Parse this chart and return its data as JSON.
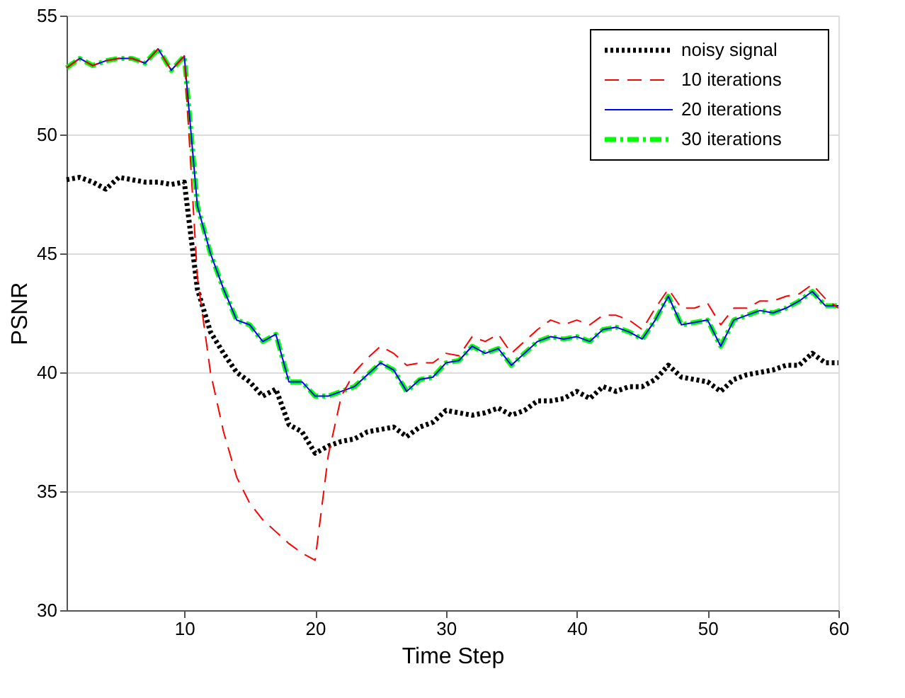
{
  "chart_data": {
    "type": "line",
    "xlabel": "Time Step",
    "ylabel": "PSNR",
    "x": [
      1,
      2,
      3,
      4,
      5,
      6,
      7,
      8,
      9,
      10,
      11,
      12,
      13,
      14,
      15,
      16,
      17,
      18,
      19,
      20,
      21,
      22,
      23,
      24,
      25,
      26,
      27,
      28,
      29,
      30,
      31,
      32,
      33,
      34,
      35,
      36,
      37,
      38,
      39,
      40,
      41,
      42,
      43,
      44,
      45,
      46,
      47,
      48,
      49,
      50,
      51,
      52,
      53,
      54,
      55,
      56,
      57,
      58,
      59,
      60
    ],
    "xlim": [
      1,
      60
    ],
    "xticks": [
      10,
      20,
      30,
      40,
      50,
      60
    ],
    "ylim": [
      30,
      55
    ],
    "yticks": [
      30,
      35,
      40,
      45,
      50,
      55
    ],
    "grid": "y",
    "legend": "top right",
    "marker": "none",
    "series": [
      {
        "name": "noisy signal",
        "color": "#000000",
        "line_style": "dotted",
        "values": [
          48.1,
          48.2,
          48.0,
          47.7,
          48.2,
          48.1,
          48.0,
          48.0,
          47.9,
          48.0,
          43.5,
          41.7,
          40.8,
          40.0,
          39.6,
          39.0,
          39.3,
          37.8,
          37.5,
          36.6,
          36.9,
          37.1,
          37.2,
          37.5,
          37.6,
          37.7,
          37.3,
          37.7,
          37.9,
          38.4,
          38.3,
          38.2,
          38.3,
          38.5,
          38.2,
          38.4,
          38.8,
          38.8,
          38.9,
          39.2,
          38.9,
          39.4,
          39.2,
          39.4,
          39.4,
          39.7,
          40.3,
          39.8,
          39.7,
          39.6,
          39.2,
          39.7,
          39.9,
          40.0,
          40.1,
          40.3,
          40.3,
          40.8,
          40.4,
          40.4
        ]
      },
      {
        "name": "10  iterations",
        "color": "#ff0000",
        "line_style": "dashed",
        "values": [
          52.8,
          53.2,
          52.9,
          53.1,
          53.2,
          53.2,
          53.0,
          53.6,
          52.7,
          53.3,
          44.0,
          40.0,
          37.5,
          35.6,
          34.5,
          33.8,
          33.3,
          32.8,
          32.4,
          32.1,
          36.5,
          39.0,
          40.0,
          40.6,
          41.1,
          40.8,
          40.3,
          40.4,
          40.4,
          40.8,
          40.7,
          41.5,
          41.3,
          41.6,
          40.8,
          41.3,
          41.8,
          42.2,
          42.0,
          42.2,
          42.0,
          42.4,
          42.4,
          42.2,
          41.8,
          42.7,
          43.5,
          42.7,
          42.7,
          42.9,
          42.0,
          42.7,
          42.7,
          43.0,
          43.0,
          43.2,
          43.3,
          43.7,
          43.1,
          42.7
        ]
      },
      {
        "name": "20  iterations",
        "color": "#0000ff",
        "line_style": "solid",
        "values": [
          52.8,
          53.2,
          52.9,
          53.1,
          53.2,
          53.2,
          53.0,
          53.6,
          52.7,
          53.3,
          47.0,
          45.0,
          43.5,
          42.2,
          42.0,
          41.3,
          41.6,
          39.6,
          39.6,
          39.0,
          39.0,
          39.2,
          39.4,
          39.9,
          40.4,
          40.1,
          39.2,
          39.7,
          39.8,
          40.4,
          40.5,
          41.1,
          40.8,
          41.0,
          40.3,
          40.8,
          41.3,
          41.5,
          41.4,
          41.5,
          41.3,
          41.8,
          41.9,
          41.7,
          41.4,
          42.2,
          43.2,
          42.0,
          42.1,
          42.2,
          41.1,
          42.2,
          42.4,
          42.6,
          42.5,
          42.7,
          43.0,
          43.4,
          42.8,
          42.8
        ]
      },
      {
        "name": "30  iterations",
        "color": "#00ff00",
        "line_style": "dashdot",
        "values": [
          52.8,
          53.2,
          52.9,
          53.1,
          53.2,
          53.2,
          53.0,
          53.6,
          52.7,
          53.3,
          47.0,
          45.0,
          43.5,
          42.2,
          42.0,
          41.3,
          41.6,
          39.6,
          39.6,
          39.0,
          39.0,
          39.2,
          39.4,
          39.9,
          40.4,
          40.1,
          39.2,
          39.7,
          39.8,
          40.4,
          40.5,
          41.1,
          40.8,
          41.0,
          40.3,
          40.8,
          41.3,
          41.5,
          41.4,
          41.5,
          41.3,
          41.8,
          41.9,
          41.7,
          41.4,
          42.2,
          43.2,
          42.0,
          42.1,
          42.2,
          41.1,
          42.2,
          42.4,
          42.6,
          42.5,
          42.7,
          43.0,
          43.4,
          42.8,
          42.8
        ]
      }
    ]
  }
}
